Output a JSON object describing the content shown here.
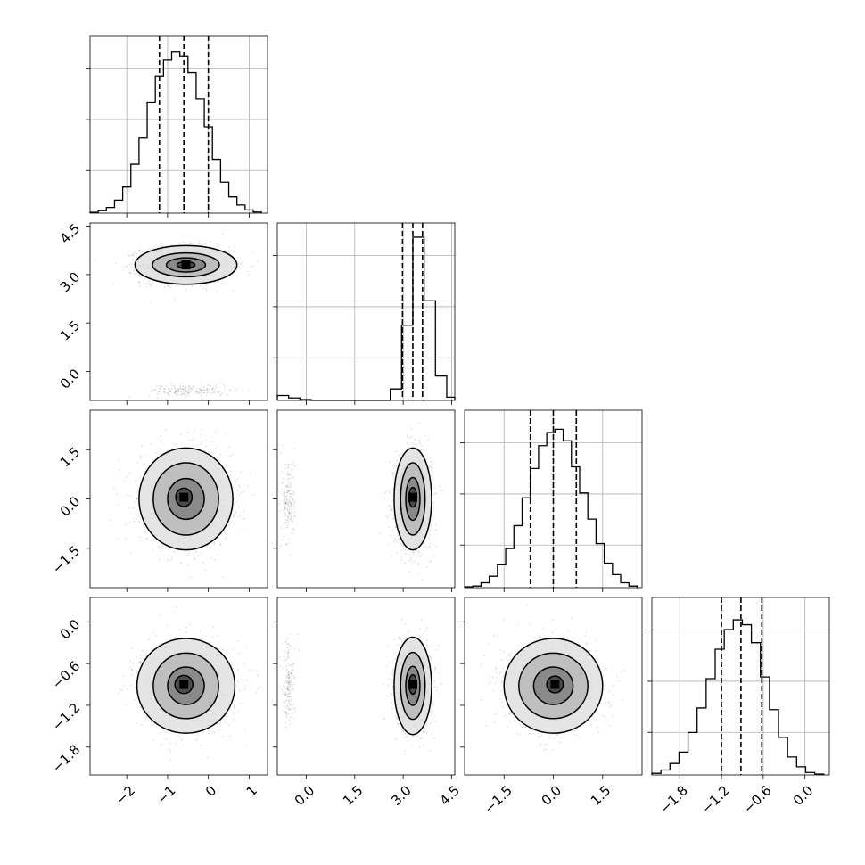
{
  "chart_data": {
    "type": "corner",
    "grid": true,
    "parameters": [
      {
        "xlim": [
          -2.9,
          1.45
        ],
        "hist_ylim": [
          0,
          1.0
        ],
        "ticks": [
          -2,
          -1,
          0,
          1
        ],
        "tick_labels": [
          "−2",
          "−1",
          "0",
          "1"
        ],
        "quantiles": [
          -1.2,
          -0.6,
          0.0
        ],
        "histogram": {
          "edges": [
            -2.9,
            -2.7,
            -2.5,
            -2.3,
            -2.1,
            -1.9,
            -1.7,
            -1.5,
            -1.3,
            -1.1,
            -0.9,
            -0.7,
            -0.5,
            -0.3,
            -0.1,
            0.1,
            0.3,
            0.5,
            0.7,
            0.9,
            1.1,
            1.3
          ],
          "counts": [
            0.005,
            0.015,
            0.035,
            0.08,
            0.16,
            0.3,
            0.46,
            0.68,
            0.84,
            0.94,
            0.99,
            0.96,
            0.86,
            0.7,
            0.53,
            0.33,
            0.19,
            0.1,
            0.05,
            0.02,
            0.007
          ]
        }
      },
      {
        "xlim": [
          -0.9,
          4.6
        ],
        "hist_ylim": [
          0,
          1.0
        ],
        "ticks": [
          0.0,
          1.5,
          3.0,
          4.5
        ],
        "tick_labels": [
          "0.0",
          "1.5",
          "3.0",
          "4.5"
        ],
        "quantiles": [
          2.98,
          3.3,
          3.6
        ],
        "histogram": {
          "edges": [
            -0.9,
            -0.55,
            -0.2,
            0.15,
            0.5,
            0.85,
            1.2,
            1.55,
            1.9,
            2.25,
            2.6,
            2.95,
            3.3,
            3.65,
            4.0,
            4.35,
            4.6
          ],
          "counts": [
            0.03,
            0.015,
            0.005,
            0,
            0,
            0,
            0,
            0,
            0,
            0,
            0.07,
            0.46,
            1.0,
            0.61,
            0.15,
            0.02
          ]
        }
      },
      {
        "xlim": [
          -2.7,
          2.7
        ],
        "hist_ylim": [
          0,
          1.0
        ],
        "ticks": [
          -1.5,
          0.0,
          1.5
        ],
        "tick_labels": [
          "−1.5",
          "0.0",
          "1.5"
        ],
        "quantiles": [
          -0.7,
          0.0,
          0.7
        ],
        "histogram": {
          "edges": [
            -2.7,
            -2.45,
            -2.2,
            -1.95,
            -1.7,
            -1.45,
            -1.2,
            -0.95,
            -0.7,
            -0.45,
            -0.2,
            0.05,
            0.3,
            0.55,
            0.8,
            1.05,
            1.3,
            1.55,
            1.8,
            2.05,
            2.3,
            2.55
          ],
          "counts": [
            0.005,
            0.01,
            0.03,
            0.07,
            0.14,
            0.24,
            0.38,
            0.55,
            0.73,
            0.87,
            0.95,
            0.97,
            0.9,
            0.74,
            0.58,
            0.42,
            0.27,
            0.15,
            0.08,
            0.03,
            0.01
          ]
        }
      },
      {
        "xlim": [
          -2.2,
          0.35
        ],
        "hist_ylim": [
          0,
          1.0
        ],
        "ticks": [
          -1.8,
          -1.2,
          -0.6,
          0.0
        ],
        "tick_labels": [
          "−1.8",
          "−1.2",
          "−0.6",
          "0.0"
        ],
        "quantiles": [
          -1.2,
          -0.92,
          -0.62
        ],
        "histogram": {
          "edges": [
            -2.2,
            -2.07,
            -1.94,
            -1.81,
            -1.68,
            -1.55,
            -1.42,
            -1.29,
            -1.16,
            -1.03,
            -0.9,
            -0.77,
            -0.64,
            -0.51,
            -0.38,
            -0.25,
            -0.12,
            0.01,
            0.14,
            0.27
          ],
          "counts": [
            0.01,
            0.03,
            0.07,
            0.14,
            0.26,
            0.41,
            0.59,
            0.77,
            0.89,
            0.95,
            0.92,
            0.81,
            0.6,
            0.4,
            0.23,
            0.11,
            0.05,
            0.015,
            0.005
          ]
        }
      }
    ],
    "pair_panels": [
      {
        "x_param": 0,
        "y_param": 1,
        "clusters": [
          {
            "mean": [
              -0.55,
              3.3
            ],
            "sd": [
              0.55,
              0.28
            ],
            "n": 1500
          },
          {
            "mean": [
              -0.45,
              -0.6
            ],
            "sd": [
              0.5,
              0.1
            ],
            "n": 160
          }
        ],
        "contours": [
          {
            "center": [
              -0.55,
              3.3
            ],
            "radii": [
              0.22,
              0.1
            ]
          },
          {
            "center": [
              -0.55,
              3.3
            ],
            "radii": [
              0.48,
              0.22
            ]
          },
          {
            "center": [
              -0.55,
              3.3
            ],
            "radii": [
              0.82,
              0.37
            ]
          },
          {
            "center": [
              -0.55,
              3.3
            ],
            "radii": [
              1.25,
              0.6
            ]
          }
        ]
      },
      {
        "x_param": 0,
        "y_param": 2,
        "clusters": [
          {
            "mean": [
              -0.55,
              0.0
            ],
            "sd": [
              0.55,
              0.7
            ],
            "n": 1600
          }
        ],
        "contours": [
          {
            "center": [
              -0.6,
              0.05
            ],
            "radii": [
              0.2,
              0.28
            ]
          },
          {
            "center": [
              -0.55,
              0.0
            ],
            "radii": [
              0.45,
              0.62
            ]
          },
          {
            "center": [
              -0.55,
              0.0
            ],
            "radii": [
              0.8,
              1.1
            ]
          },
          {
            "center": [
              -0.55,
              0.0
            ],
            "radii": [
              1.15,
              1.55
            ]
          }
        ]
      },
      {
        "x_param": 1,
        "y_param": 2,
        "clusters": [
          {
            "mean": [
              3.3,
              0.0
            ],
            "sd": [
              0.28,
              0.7
            ],
            "n": 1500
          },
          {
            "mean": [
              -0.55,
              0.0
            ],
            "sd": [
              0.1,
              0.7
            ],
            "n": 160
          }
        ],
        "contours": [
          {
            "center": [
              3.3,
              0.05
            ],
            "radii": [
              0.12,
              0.3
            ]
          },
          {
            "center": [
              3.3,
              0.0
            ],
            "radii": [
              0.22,
              0.65
            ]
          },
          {
            "center": [
              3.3,
              0.0
            ],
            "radii": [
              0.38,
              1.1
            ]
          },
          {
            "center": [
              3.3,
              0.0
            ],
            "radii": [
              0.58,
              1.55
            ]
          }
        ]
      },
      {
        "x_param": 0,
        "y_param": 3,
        "clusters": [
          {
            "mean": [
              -0.55,
              -0.92
            ],
            "sd": [
              0.55,
              0.3
            ],
            "n": 1600
          }
        ],
        "contours": [
          {
            "center": [
              -0.6,
              -0.9
            ],
            "radii": [
              0.22,
              0.13
            ]
          },
          {
            "center": [
              -0.55,
              -0.92
            ],
            "radii": [
              0.45,
              0.27
            ]
          },
          {
            "center": [
              -0.55,
              -0.92
            ],
            "radii": [
              0.8,
              0.47
            ]
          },
          {
            "center": [
              -0.55,
              -0.92
            ],
            "radii": [
              1.2,
              0.68
            ]
          }
        ]
      },
      {
        "x_param": 1,
        "y_param": 3,
        "clusters": [
          {
            "mean": [
              3.3,
              -0.92
            ],
            "sd": [
              0.28,
              0.3
            ],
            "n": 1500
          },
          {
            "mean": [
              -0.55,
              -0.92
            ],
            "sd": [
              0.1,
              0.3
            ],
            "n": 160
          }
        ],
        "contours": [
          {
            "center": [
              3.3,
              -0.9
            ],
            "radii": [
              0.12,
              0.14
            ]
          },
          {
            "center": [
              3.3,
              -0.92
            ],
            "radii": [
              0.22,
              0.28
            ]
          },
          {
            "center": [
              3.3,
              -0.92
            ],
            "radii": [
              0.38,
              0.48
            ]
          },
          {
            "center": [
              3.3,
              -0.92
            ],
            "radii": [
              0.58,
              0.7
            ]
          }
        ]
      },
      {
        "x_param": 2,
        "y_param": 3,
        "clusters": [
          {
            "mean": [
              0.0,
              -0.92
            ],
            "sd": [
              0.7,
              0.3
            ],
            "n": 1600
          }
        ],
        "contours": [
          {
            "center": [
              0.05,
              -0.9
            ],
            "radii": [
              0.25,
              0.12
            ]
          },
          {
            "center": [
              0.0,
              -0.92
            ],
            "radii": [
              0.6,
              0.27
            ]
          },
          {
            "center": [
              0.0,
              -0.92
            ],
            "radii": [
              1.05,
              0.47
            ]
          },
          {
            "center": [
              0.0,
              -0.92
            ],
            "radii": [
              1.5,
              0.68
            ]
          }
        ]
      }
    ]
  }
}
